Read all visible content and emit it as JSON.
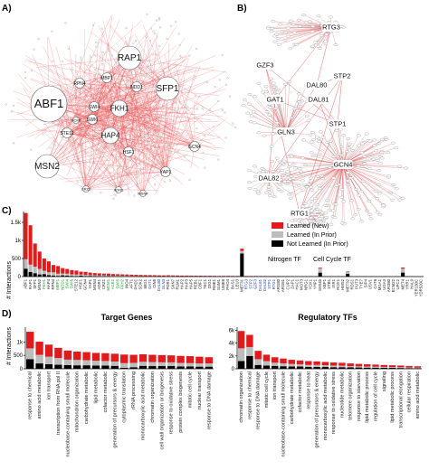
{
  "panels": {
    "a": "A)",
    "b": "B)",
    "c": "C)",
    "d": "D)"
  },
  "network_a": {
    "hubs": [
      {
        "label": "RAP1",
        "size": "lg"
      },
      {
        "label": "ABF1",
        "size": "xl"
      },
      {
        "label": "SFP1",
        "size": "lg"
      },
      {
        "label": "MSN2",
        "size": "lg"
      },
      {
        "label": "FKH1",
        "size": "md"
      },
      {
        "label": "HAP4",
        "size": "md"
      },
      {
        "label": "RPN4",
        "size": "sm"
      },
      {
        "label": "NDD1",
        "size": "sm"
      },
      {
        "label": "STE12",
        "size": "sm"
      },
      {
        "label": "SWI4",
        "size": "sm"
      },
      {
        "label": "SWI6",
        "size": "sm"
      },
      {
        "label": "MBP1",
        "size": "sm"
      },
      {
        "label": "HSF1",
        "size": "sm"
      },
      {
        "label": "GCN4",
        "size": "sm"
      },
      {
        "label": "YAP1",
        "size": "sm"
      },
      {
        "label": "ADR1",
        "size": "xs"
      },
      {
        "label": "MSN4",
        "size": "xs"
      },
      {
        "label": "CRZ1",
        "size": "xs"
      },
      {
        "label": "MCM1",
        "size": "xs"
      }
    ],
    "colors": {
      "edge": "#e8474a",
      "node": "#ffffff"
    }
  },
  "network_b": {
    "hubs": [
      {
        "label": "RTG3"
      },
      {
        "label": "DAL80"
      },
      {
        "label": "GZF3"
      },
      {
        "label": "DAL81"
      },
      {
        "label": "STP2"
      },
      {
        "label": "GAT1"
      },
      {
        "label": "STP1"
      },
      {
        "label": "GLN3"
      },
      {
        "label": "GCN4"
      },
      {
        "label": "DAL82"
      },
      {
        "label": "RTG1"
      }
    ]
  },
  "colors": {
    "learned_new": "#e31a1c",
    "learned_prior": "#bdbdbd",
    "not_learned": "#000000",
    "nitrogen_tf": "#1f3ea8",
    "cell_cycle_tf": "#1a9a2a"
  },
  "chart_c": {
    "ylabel": "# Interactions",
    "yticks": [
      "1.5k",
      "1k",
      "500",
      "0"
    ],
    "legend": [
      {
        "label": "Learned (New)",
        "color": "#e31a1c"
      },
      {
        "label": "Learned (In Prior)",
        "color": "#bdbdbd"
      },
      {
        "label": "Not Learned (In Prior)",
        "color": "#000000"
      }
    ],
    "legend_text": {
      "nitrogen": "Nitrogen TF",
      "cell_cycle": "Cell Cycle TF"
    }
  },
  "chart_d_left": {
    "title": "Target Genes",
    "ylabel": "# Interactions",
    "yticks": [
      "1k",
      "500",
      "0"
    ],
    "categories": [
      "response to chemical",
      "amino acid metabolic",
      "ion transport",
      "transcription from RNA pol II",
      "nucleobase-containing small molecule",
      "mitochondrion organization",
      "carbohydrate metabolic",
      "lipid metabolic",
      "cofactor metabolic",
      "generation of precursors & energy",
      "cytoplasmic translation",
      "rRNA processing",
      "monocarboxylic acid metabolic",
      "chromatin organization",
      "cell wall organization or biogenesis",
      "response to oxidative stress",
      "protein complex biogenesis",
      "mitotic cell cycle",
      "nuclear transport",
      "response to DNA damage"
    ]
  },
  "chart_d_right": {
    "title": "Regulatory TFs",
    "yticks": [
      "6k",
      "4k",
      "2k",
      "0"
    ],
    "categories": [
      "chromatin organization",
      "response to chemical",
      "response to DNA damage",
      "mitotic cell cycle",
      "ion transport",
      "nucleobase-containing small molecule",
      "carbohydrate metabolic",
      "cofactor metabolic",
      "response to heat",
      "generation of precursors & energy",
      "monocarboxylic acid metabolic",
      "response to oxidative stress",
      "nucleotide metabolic",
      "telomere organization",
      "response to starvation",
      "lipid metabolic process",
      "regulation of cell cycle",
      "signaling",
      "lipid metabolic process",
      "transcriptional elongation",
      "cellular respiration",
      "amino acid metabolic"
    ]
  },
  "chart_data": [
    {
      "type": "bar",
      "ylim": [
        0,
        1800
      ],
      "series": [
        {
          "name": "Not Learned (In Prior)",
          "values": [
            220,
            130,
            95,
            60,
            70,
            40,
            30,
            20,
            35,
            25,
            20,
            15,
            25,
            15,
            20,
            12,
            10,
            8,
            12,
            10,
            8,
            6,
            8,
            6,
            5,
            5,
            4,
            6,
            5,
            4,
            4,
            10,
            5,
            4,
            3,
            5,
            4,
            3,
            5,
            3,
            3,
            4,
            3,
            3,
            4,
            3,
            3,
            640,
            3,
            3,
            3,
            2,
            3,
            2,
            3,
            2,
            2,
            3,
            2,
            2,
            2,
            2,
            2,
            2,
            110,
            2,
            2,
            2,
            2,
            2,
            80,
            2,
            2,
            2,
            2,
            1,
            2,
            1,
            1,
            1,
            1,
            1,
            110,
            1,
            1,
            1,
            1
          ]
        },
        {
          "name": "Learned (In Prior)",
          "values": [
            260,
            200,
            180,
            150,
            90,
            80,
            90,
            60,
            50,
            55,
            40,
            40,
            30,
            30,
            20,
            25,
            20,
            25,
            15,
            15,
            18,
            16,
            15,
            12,
            12,
            10,
            10,
            8,
            9,
            8,
            8,
            6,
            9,
            8,
            7,
            6,
            6,
            6,
            6,
            6,
            7,
            5,
            5,
            6,
            5,
            5,
            5,
            70,
            6,
            5,
            5,
            5,
            5,
            5,
            5,
            5,
            5,
            5,
            5,
            4,
            4,
            4,
            4,
            4,
            120,
            4,
            4,
            4,
            4,
            4,
            60,
            4,
            4,
            4,
            3,
            3,
            4,
            3,
            3,
            3,
            3,
            3,
            110,
            3,
            3,
            3,
            3
          ]
        },
        {
          "name": "Learned (New)",
          "values": [
            1280,
            1090,
            640,
            480,
            340,
            300,
            200,
            210,
            150,
            130,
            120,
            110,
            80,
            85,
            70,
            60,
            60,
            50,
            55,
            45,
            40,
            40,
            35,
            35,
            32,
            30,
            28,
            26,
            24,
            22,
            20,
            20,
            18,
            18,
            17,
            16,
            15,
            14,
            13,
            12,
            12,
            11,
            10,
            10,
            10,
            9,
            9,
            60,
            8,
            8,
            8,
            8,
            7,
            7,
            7,
            7,
            6,
            6,
            6,
            6,
            6,
            5,
            5,
            5,
            20,
            5,
            5,
            5,
            5,
            4,
            10,
            4,
            4,
            4,
            4,
            4,
            3,
            3,
            3,
            3,
            3,
            3,
            30,
            3,
            3,
            3,
            3
          ]
        }
      ],
      "categories": [
        "ABF1",
        "RAP1",
        "SFP1",
        "MSN2",
        "FKH1",
        "HAP4",
        "RPN4",
        "MBP1",
        "NDD1",
        "SWI4",
        "SWI6",
        "STE12",
        "HSF1",
        "GCN4",
        "YAP1",
        "MSN4",
        "ADR1",
        "CRZ1",
        "MCM1",
        "ACE2",
        "SWI5",
        "FKH2",
        "INO4",
        "AFT1",
        "PHD1",
        "SOK2",
        "MIG1",
        "GAT1",
        "CIN5",
        "DAL80",
        "GLN3",
        "PDR1",
        "SKN7",
        "RLM1",
        "HAP2",
        "HAP3",
        "HAP5",
        "REB1",
        "CBF1",
        "TEC1",
        "DIG1",
        "RME1",
        "SUM1",
        "UME6",
        "PHO4",
        "BAS1",
        "LEU3",
        "MET31",
        "RTG3",
        "STP2",
        "GZF3",
        "DAL81",
        "DAL82",
        "STP1",
        "RTG1",
        "ARG80",
        "ARG81",
        "CUP2",
        "ZAP1",
        "HAC1",
        "MOT3",
        "NRG1",
        "YOX1",
        "YHP1",
        "SWI4b",
        "XBP1",
        "STB1",
        "IXR1",
        "ROX1",
        "HMS2",
        "MET32",
        "RDS1",
        "PUT3",
        "TYE7",
        "SIP4",
        "USV1",
        "CAT8",
        "MGA1",
        "UGA3",
        "ARO80",
        "ECM22",
        "UPC2",
        "MET4",
        "YRR1",
        "HAL9",
        "YER130C",
        "YDR520C"
      ],
      "ylabel": "# Interactions"
    },
    {
      "type": "bar",
      "title": "Target Genes",
      "ylabel": "# Interactions",
      "ylim": [
        0,
        1550
      ],
      "categories": [
        "response to chemical",
        "amino acid metabolic",
        "ion transport",
        "transcription from RNA pol II",
        "nucleobase-containing small molecule",
        "mitochondrion organization",
        "carbohydrate metabolic",
        "lipid metabolic",
        "cofactor metabolic",
        "generation of precursors & energy",
        "cytoplasmic translation",
        "rRNA processing",
        "monocarboxylic acid metabolic",
        "chromatin organization",
        "cell wall organization or biogenesis",
        "response to oxidative stress",
        "protein complex biogenesis",
        "mitotic cell cycle",
        "nuclear transport",
        "response to DNA damage"
      ],
      "series": [
        {
          "name": "Not Learned (In Prior)",
          "values": [
            360,
            200,
            170,
            150,
            140,
            130,
            130,
            120,
            120,
            110,
            40,
            60,
            110,
            100,
            100,
            100,
            90,
            90,
            80,
            80
          ]
        },
        {
          "name": "Learned (In Prior)",
          "values": [
            400,
            320,
            280,
            250,
            200,
            200,
            190,
            180,
            170,
            160,
            170,
            160,
            150,
            150,
            140,
            140,
            130,
            120,
            120,
            120
          ]
        },
        {
          "name": "Learned (New)",
          "values": [
            620,
            490,
            450,
            380,
            340,
            310,
            300,
            290,
            290,
            290,
            320,
            300,
            280,
            270,
            270,
            260,
            260,
            260,
            250,
            230
          ]
        }
      ]
    },
    {
      "type": "bar",
      "title": "Regulatory TFs",
      "ylim": [
        0,
        6500
      ],
      "categories": [
        "chromatin organization",
        "response to chemical",
        "response to DNA damage",
        "mitotic cell cycle",
        "ion transport",
        "nucleobase-containing small molecule",
        "carbohydrate metabolic",
        "cofactor metabolic",
        "response to heat",
        "generation of precursors & energy",
        "monocarboxylic acid metabolic",
        "response to oxidative stress",
        "nucleotide metabolic",
        "telomere organization",
        "response to starvation",
        "lipid metabolic process",
        "regulation of cell cycle",
        "signaling",
        "lipid metabolic process",
        "transcriptional elongation",
        "cellular respiration",
        "amino acid metabolic"
      ],
      "series": [
        {
          "name": "Not Learned (In Prior)",
          "values": [
            1200,
            2000,
            600,
            500,
            450,
            400,
            350,
            350,
            300,
            300,
            280,
            250,
            250,
            220,
            200,
            180,
            170,
            150,
            140,
            120,
            100,
            80
          ]
        },
        {
          "name": "Learned (In Prior)",
          "values": [
            2000,
            1400,
            900,
            700,
            500,
            450,
            400,
            350,
            300,
            300,
            280,
            250,
            230,
            200,
            180,
            170,
            150,
            140,
            130,
            120,
            100,
            90
          ]
        },
        {
          "name": "Learned (New)",
          "values": [
            2700,
            1900,
            1300,
            1000,
            850,
            750,
            650,
            600,
            600,
            550,
            500,
            480,
            450,
            420,
            380,
            350,
            330,
            300,
            280,
            260,
            240,
            220
          ]
        }
      ]
    }
  ]
}
